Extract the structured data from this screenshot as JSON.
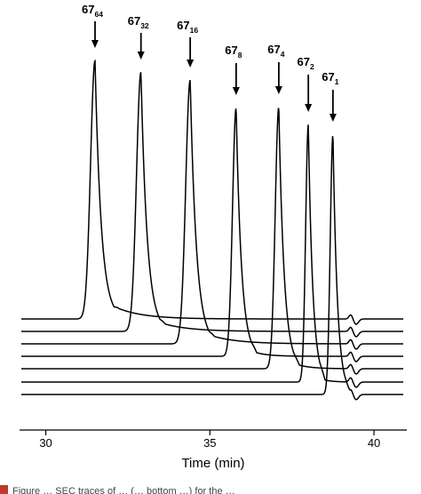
{
  "chart_data": {
    "type": "line",
    "xlabel": "Time (min)",
    "xlim": [
      29.2,
      41.0
    ],
    "x_ticks": [
      30,
      35,
      40
    ],
    "grid": false,
    "legend": "none",
    "line_color": "#000000",
    "series": [
      {
        "label_base": "67",
        "label_sub": "64",
        "peak_time": 31.5,
        "baseline_time_start": 29.2
      },
      {
        "label_base": "67",
        "label_sub": "32",
        "peak_time": 32.9
      },
      {
        "label_base": "67",
        "label_sub": "16",
        "peak_time": 34.4
      },
      {
        "label_base": "67",
        "label_sub": "8",
        "peak_time": 35.8
      },
      {
        "label_base": "67",
        "label_sub": "4",
        "peak_time": 37.1
      },
      {
        "label_base": "67",
        "label_sub": "2",
        "peak_time": 38.0
      },
      {
        "label_base": "67",
        "label_sub": "1",
        "peak_time": 38.75
      }
    ]
  },
  "caption_fragment": "Figure … SEC traces of … (… bottom …) for the …"
}
